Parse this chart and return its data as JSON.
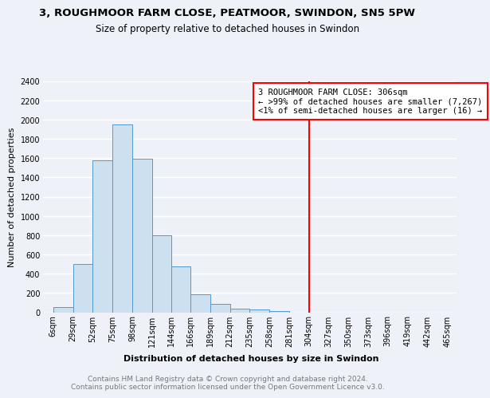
{
  "title": "3, ROUGHMOOR FARM CLOSE, PEATMOOR, SWINDON, SN5 5PW",
  "subtitle": "Size of property relative to detached houses in Swindon",
  "xlabel": "Distribution of detached houses by size in Swindon",
  "ylabel": "Number of detached properties",
  "bin_labels": [
    "6sqm",
    "29sqm",
    "52sqm",
    "75sqm",
    "98sqm",
    "121sqm",
    "144sqm",
    "166sqm",
    "189sqm",
    "212sqm",
    "235sqm",
    "258sqm",
    "281sqm",
    "304sqm",
    "327sqm",
    "350sqm",
    "373sqm",
    "396sqm",
    "419sqm",
    "442sqm",
    "465sqm"
  ],
  "bin_edges": [
    6,
    29,
    52,
    75,
    98,
    121,
    144,
    166,
    189,
    212,
    235,
    258,
    281,
    304,
    327,
    350,
    373,
    396,
    419,
    442,
    465
  ],
  "bar_heights": [
    50,
    500,
    1580,
    1950,
    1590,
    800,
    480,
    190,
    90,
    35,
    25,
    15,
    0,
    0,
    0,
    0,
    0,
    0,
    0,
    0
  ],
  "bar_face_color": "#cce0f0",
  "bar_edge_color": "#5599cc",
  "vline_x": 304,
  "vline_color": "red",
  "ylim": [
    0,
    2400
  ],
  "yticks": [
    0,
    200,
    400,
    600,
    800,
    1000,
    1200,
    1400,
    1600,
    1800,
    2000,
    2200,
    2400
  ],
  "annotation_title": "3 ROUGHMOOR FARM CLOSE: 306sqm",
  "annotation_line1": "← >99% of detached houses are smaller (7,267)",
  "annotation_line2": "<1% of semi-detached houses are larger (16) →",
  "annotation_box_color": "#ffffff",
  "annotation_box_edgecolor": "red",
  "footer_line1": "Contains HM Land Registry data © Crown copyright and database right 2024.",
  "footer_line2": "Contains public sector information licensed under the Open Government Licence v3.0.",
  "background_color": "#eef2f8",
  "grid_color": "#ffffff",
  "title_fontsize": 9.5,
  "subtitle_fontsize": 8.5,
  "axis_label_fontsize": 8,
  "tick_fontsize": 7,
  "annotation_fontsize": 7.5,
  "footer_fontsize": 6.5
}
